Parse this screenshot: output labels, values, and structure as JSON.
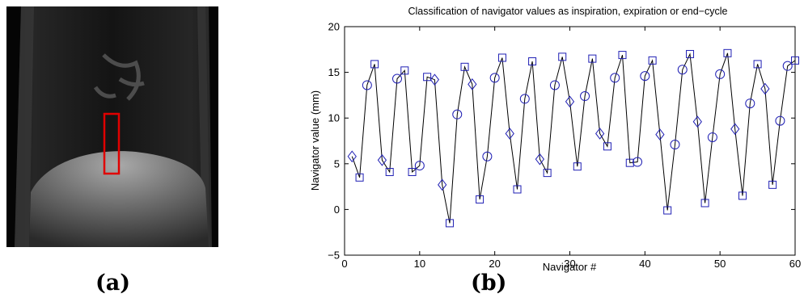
{
  "figure": {
    "panel_a_label": "(a)",
    "panel_b_label": "(b)"
  },
  "chart_data": {
    "type": "scatter",
    "title": "Classification of navigator values as inspiration, expiration or end−cycle",
    "xlabel": "Navigator #",
    "ylabel": "Navigator value (mm)",
    "xlim": [
      0,
      60
    ],
    "ylim": [
      -5,
      20
    ],
    "xticks": [
      0,
      10,
      20,
      30,
      40,
      50,
      60
    ],
    "yticks": [
      -5,
      0,
      5,
      10,
      15,
      20
    ],
    "grid": false,
    "legend": "none",
    "line_color": "#000000",
    "marker_color": "#1f1fb4",
    "markers": {
      "diamond": "diamond",
      "square": "square",
      "circle": "circle"
    },
    "points": [
      {
        "x": 1,
        "y": 5.8,
        "m": "diamond"
      },
      {
        "x": 2,
        "y": 3.5,
        "m": "square"
      },
      {
        "x": 3,
        "y": 13.6,
        "m": "circle"
      },
      {
        "x": 4,
        "y": 15.9,
        "m": "square"
      },
      {
        "x": 5,
        "y": 5.4,
        "m": "diamond"
      },
      {
        "x": 6,
        "y": 4.1,
        "m": "square"
      },
      {
        "x": 7,
        "y": 14.3,
        "m": "circle"
      },
      {
        "x": 8,
        "y": 15.2,
        "m": "square"
      },
      {
        "x": 9,
        "y": 4.1,
        "m": "square"
      },
      {
        "x": 10,
        "y": 4.8,
        "m": "circle"
      },
      {
        "x": 11,
        "y": 14.5,
        "m": "square"
      },
      {
        "x": 12,
        "y": 14.2,
        "m": "diamond"
      },
      {
        "x": 13,
        "y": 2.7,
        "m": "diamond"
      },
      {
        "x": 14,
        "y": -1.5,
        "m": "square"
      },
      {
        "x": 15,
        "y": 10.4,
        "m": "circle"
      },
      {
        "x": 16,
        "y": 15.6,
        "m": "square"
      },
      {
        "x": 17,
        "y": 13.7,
        "m": "diamond"
      },
      {
        "x": 18,
        "y": 1.1,
        "m": "square"
      },
      {
        "x": 19,
        "y": 5.8,
        "m": "circle"
      },
      {
        "x": 20,
        "y": 14.4,
        "m": "circle"
      },
      {
        "x": 21,
        "y": 16.6,
        "m": "square"
      },
      {
        "x": 22,
        "y": 8.3,
        "m": "diamond"
      },
      {
        "x": 23,
        "y": 2.2,
        "m": "square"
      },
      {
        "x": 24,
        "y": 12.1,
        "m": "circle"
      },
      {
        "x": 25,
        "y": 16.2,
        "m": "square"
      },
      {
        "x": 26,
        "y": 5.5,
        "m": "diamond"
      },
      {
        "x": 27,
        "y": 4.0,
        "m": "square"
      },
      {
        "x": 28,
        "y": 13.6,
        "m": "circle"
      },
      {
        "x": 29,
        "y": 16.7,
        "m": "square"
      },
      {
        "x": 30,
        "y": 11.8,
        "m": "diamond"
      },
      {
        "x": 31,
        "y": 4.7,
        "m": "square"
      },
      {
        "x": 32,
        "y": 12.4,
        "m": "circle"
      },
      {
        "x": 33,
        "y": 16.5,
        "m": "square"
      },
      {
        "x": 34,
        "y": 8.3,
        "m": "diamond"
      },
      {
        "x": 35,
        "y": 6.9,
        "m": "square"
      },
      {
        "x": 36,
        "y": 14.4,
        "m": "circle"
      },
      {
        "x": 37,
        "y": 16.9,
        "m": "square"
      },
      {
        "x": 38,
        "y": 5.1,
        "m": "square"
      },
      {
        "x": 39,
        "y": 5.2,
        "m": "circle"
      },
      {
        "x": 40,
        "y": 14.6,
        "m": "circle"
      },
      {
        "x": 41,
        "y": 16.3,
        "m": "square"
      },
      {
        "x": 42,
        "y": 8.2,
        "m": "diamond"
      },
      {
        "x": 43,
        "y": -0.1,
        "m": "square"
      },
      {
        "x": 44,
        "y": 7.1,
        "m": "circle"
      },
      {
        "x": 45,
        "y": 15.3,
        "m": "circle"
      },
      {
        "x": 46,
        "y": 17.0,
        "m": "square"
      },
      {
        "x": 47,
        "y": 9.6,
        "m": "diamond"
      },
      {
        "x": 48,
        "y": 0.7,
        "m": "square"
      },
      {
        "x": 49,
        "y": 7.9,
        "m": "circle"
      },
      {
        "x": 50,
        "y": 14.8,
        "m": "circle"
      },
      {
        "x": 51,
        "y": 17.1,
        "m": "square"
      },
      {
        "x": 52,
        "y": 8.8,
        "m": "diamond"
      },
      {
        "x": 53,
        "y": 1.5,
        "m": "square"
      },
      {
        "x": 54,
        "y": 11.6,
        "m": "circle"
      },
      {
        "x": 55,
        "y": 15.9,
        "m": "square"
      },
      {
        "x": 56,
        "y": 13.2,
        "m": "diamond"
      },
      {
        "x": 57,
        "y": 2.7,
        "m": "square"
      },
      {
        "x": 58,
        "y": 9.7,
        "m": "circle"
      },
      {
        "x": 59,
        "y": 15.7,
        "m": "circle"
      },
      {
        "x": 60,
        "y": 16.3,
        "m": "square"
      }
    ]
  }
}
